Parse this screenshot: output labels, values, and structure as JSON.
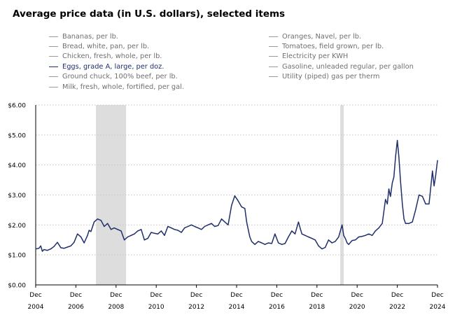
{
  "title": "Average price data (in U.S. dollars), selected items",
  "legend": {
    "left": [
      {
        "label": "Bananas, per lb.",
        "active": false
      },
      {
        "label": "Bread, white, pan, per lb.",
        "active": false
      },
      {
        "label": "Chicken, fresh, whole, per lb.",
        "active": false
      },
      {
        "label": "Eggs, grade A, large, per doz.",
        "active": true
      },
      {
        "label": "Ground chuck, 100% beef, per lb.",
        "active": false
      },
      {
        "label": "Milk, fresh, whole, fortified, per gal.",
        "active": false
      }
    ],
    "right": [
      {
        "label": "Oranges, Navel, per lb.",
        "active": false
      },
      {
        "label": "Tomatoes, field grown, per lb.",
        "active": false
      },
      {
        "label": "Electricity per KWH",
        "active": false
      },
      {
        "label": "Gasoline, unleaded regular, per gallon",
        "active": false
      },
      {
        "label": "Utility (piped) gas per therm",
        "active": false
      }
    ]
  },
  "colors": {
    "series": "#1f2f6a",
    "recession": "#dddddd",
    "grid": "#c8c8c8",
    "axis": "#000000"
  },
  "chart_data": {
    "type": "line",
    "title": "Average price data (in U.S. dollars), selected items",
    "ylabel": "",
    "xlabel": "",
    "ylim": [
      0,
      6
    ],
    "xlim": [
      2004.92,
      2024.92
    ],
    "grid": "horizontal-dotted",
    "y_ticks": [
      {
        "value": 0,
        "label": "$0.00"
      },
      {
        "value": 1,
        "label": "$1.00"
      },
      {
        "value": 2,
        "label": "$2.00"
      },
      {
        "value": 3,
        "label": "$3.00"
      },
      {
        "value": 4,
        "label": "$4.00"
      },
      {
        "value": 5,
        "label": "$5.00"
      },
      {
        "value": 6,
        "label": "$6.00"
      }
    ],
    "x_ticks": [
      {
        "value": 2004.92,
        "month": "Dec",
        "year": "2004"
      },
      {
        "value": 2006.92,
        "month": "Dec",
        "year": "2006"
      },
      {
        "value": 2008.92,
        "month": "Dec",
        "year": "2008"
      },
      {
        "value": 2010.92,
        "month": "Dec",
        "year": "2010"
      },
      {
        "value": 2012.92,
        "month": "Dec",
        "year": "2012"
      },
      {
        "value": 2014.92,
        "month": "Dec",
        "year": "2014"
      },
      {
        "value": 2016.92,
        "month": "Dec",
        "year": "2016"
      },
      {
        "value": 2018.92,
        "month": "Dec",
        "year": "2018"
      },
      {
        "value": 2020.92,
        "month": "Dec",
        "year": "2020"
      },
      {
        "value": 2022.92,
        "month": "Dec",
        "year": "2022"
      },
      {
        "value": 2024.92,
        "month": "Dec",
        "year": "2024"
      }
    ],
    "recessions": [
      {
        "start": 2007.92,
        "end": 2009.42
      },
      {
        "start": 2020.08,
        "end": 2020.25
      }
    ],
    "series": [
      {
        "name": "Eggs, grade A, large, per doz.",
        "x": [
          2004.92,
          2005.08,
          2005.17,
          2005.25,
          2005.33,
          2005.5,
          2005.67,
          2005.83,
          2006.0,
          2006.17,
          2006.33,
          2006.5,
          2006.67,
          2006.83,
          2007.0,
          2007.17,
          2007.33,
          2007.5,
          2007.58,
          2007.67,
          2007.83,
          2008.0,
          2008.17,
          2008.33,
          2008.5,
          2008.67,
          2008.83,
          2009.0,
          2009.17,
          2009.33,
          2009.5,
          2009.67,
          2009.83,
          2010.0,
          2010.17,
          2010.33,
          2010.5,
          2010.67,
          2010.83,
          2011.0,
          2011.17,
          2011.33,
          2011.5,
          2011.67,
          2011.83,
          2012.0,
          2012.17,
          2012.33,
          2012.5,
          2012.67,
          2012.83,
          2013.0,
          2013.17,
          2013.33,
          2013.5,
          2013.67,
          2013.83,
          2014.0,
          2014.17,
          2014.33,
          2014.5,
          2014.67,
          2014.83,
          2015.0,
          2015.17,
          2015.33,
          2015.42,
          2015.5,
          2015.58,
          2015.67,
          2015.83,
          2016.0,
          2016.17,
          2016.33,
          2016.5,
          2016.67,
          2016.83,
          2017.0,
          2017.17,
          2017.33,
          2017.5,
          2017.67,
          2017.83,
          2018.0,
          2018.08,
          2018.17,
          2018.33,
          2018.5,
          2018.67,
          2018.83,
          2019.0,
          2019.17,
          2019.33,
          2019.5,
          2019.67,
          2019.83,
          2020.0,
          2020.17,
          2020.25,
          2020.33,
          2020.42,
          2020.5,
          2020.67,
          2020.83,
          2021.0,
          2021.17,
          2021.33,
          2021.5,
          2021.67,
          2021.83,
          2022.0,
          2022.17,
          2022.33,
          2022.42,
          2022.5,
          2022.58,
          2022.67,
          2022.75,
          2022.83,
          2022.92,
          2023.0,
          2023.08,
          2023.17,
          2023.25,
          2023.33,
          2023.5,
          2023.67,
          2023.83,
          2024.0,
          2024.17,
          2024.33,
          2024.5,
          2024.67,
          2024.75,
          2024.83,
          2024.92
        ],
        "y": [
          1.2,
          1.22,
          1.3,
          1.12,
          1.18,
          1.15,
          1.2,
          1.28,
          1.42,
          1.24,
          1.22,
          1.26,
          1.3,
          1.42,
          1.7,
          1.6,
          1.4,
          1.65,
          1.82,
          1.78,
          2.1,
          2.2,
          2.15,
          1.95,
          2.05,
          1.85,
          1.9,
          1.85,
          1.8,
          1.5,
          1.6,
          1.65,
          1.7,
          1.8,
          1.85,
          1.5,
          1.55,
          1.75,
          1.72,
          1.7,
          1.8,
          1.65,
          1.95,
          1.9,
          1.85,
          1.82,
          1.75,
          1.9,
          1.95,
          2.0,
          1.95,
          1.9,
          1.85,
          1.95,
          2.0,
          2.05,
          1.95,
          1.98,
          2.2,
          2.1,
          2.0,
          2.65,
          2.97,
          2.8,
          2.6,
          2.55,
          2.1,
          1.85,
          1.6,
          1.45,
          1.35,
          1.45,
          1.4,
          1.35,
          1.4,
          1.38,
          1.7,
          1.4,
          1.35,
          1.38,
          1.6,
          1.8,
          1.7,
          2.1,
          1.9,
          1.7,
          1.65,
          1.6,
          1.55,
          1.5,
          1.3,
          1.2,
          1.25,
          1.5,
          1.4,
          1.45,
          1.6,
          2.0,
          1.65,
          1.55,
          1.4,
          1.35,
          1.48,
          1.5,
          1.6,
          1.62,
          1.65,
          1.7,
          1.65,
          1.8,
          1.9,
          2.05,
          2.85,
          2.7,
          3.2,
          2.95,
          3.4,
          3.6,
          4.25,
          4.82,
          4.25,
          3.45,
          2.7,
          2.2,
          2.05,
          2.05,
          2.1,
          2.5,
          3.0,
          2.95,
          2.7,
          2.7,
          3.8,
          3.3,
          3.65,
          4.15
        ]
      }
    ]
  }
}
